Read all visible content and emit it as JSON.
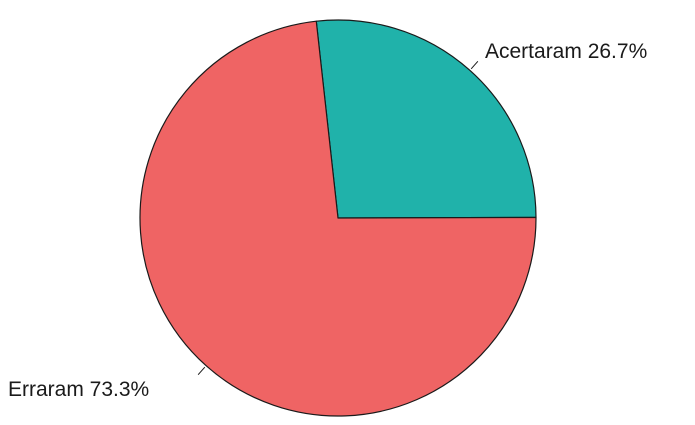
{
  "chart_data": {
    "type": "pie",
    "slices": [
      {
        "label": "Acertaram",
        "value": 26.7,
        "display": "Acertaram 26.7%",
        "color": "#20b2aa"
      },
      {
        "label": "Erraram",
        "value": 73.3,
        "display": "Erraram 73.3%",
        "color": "#ef6464"
      }
    ],
    "start_angle_deg": -6.3,
    "direction": "clockwise",
    "outline_color": "#1a1a1a"
  }
}
